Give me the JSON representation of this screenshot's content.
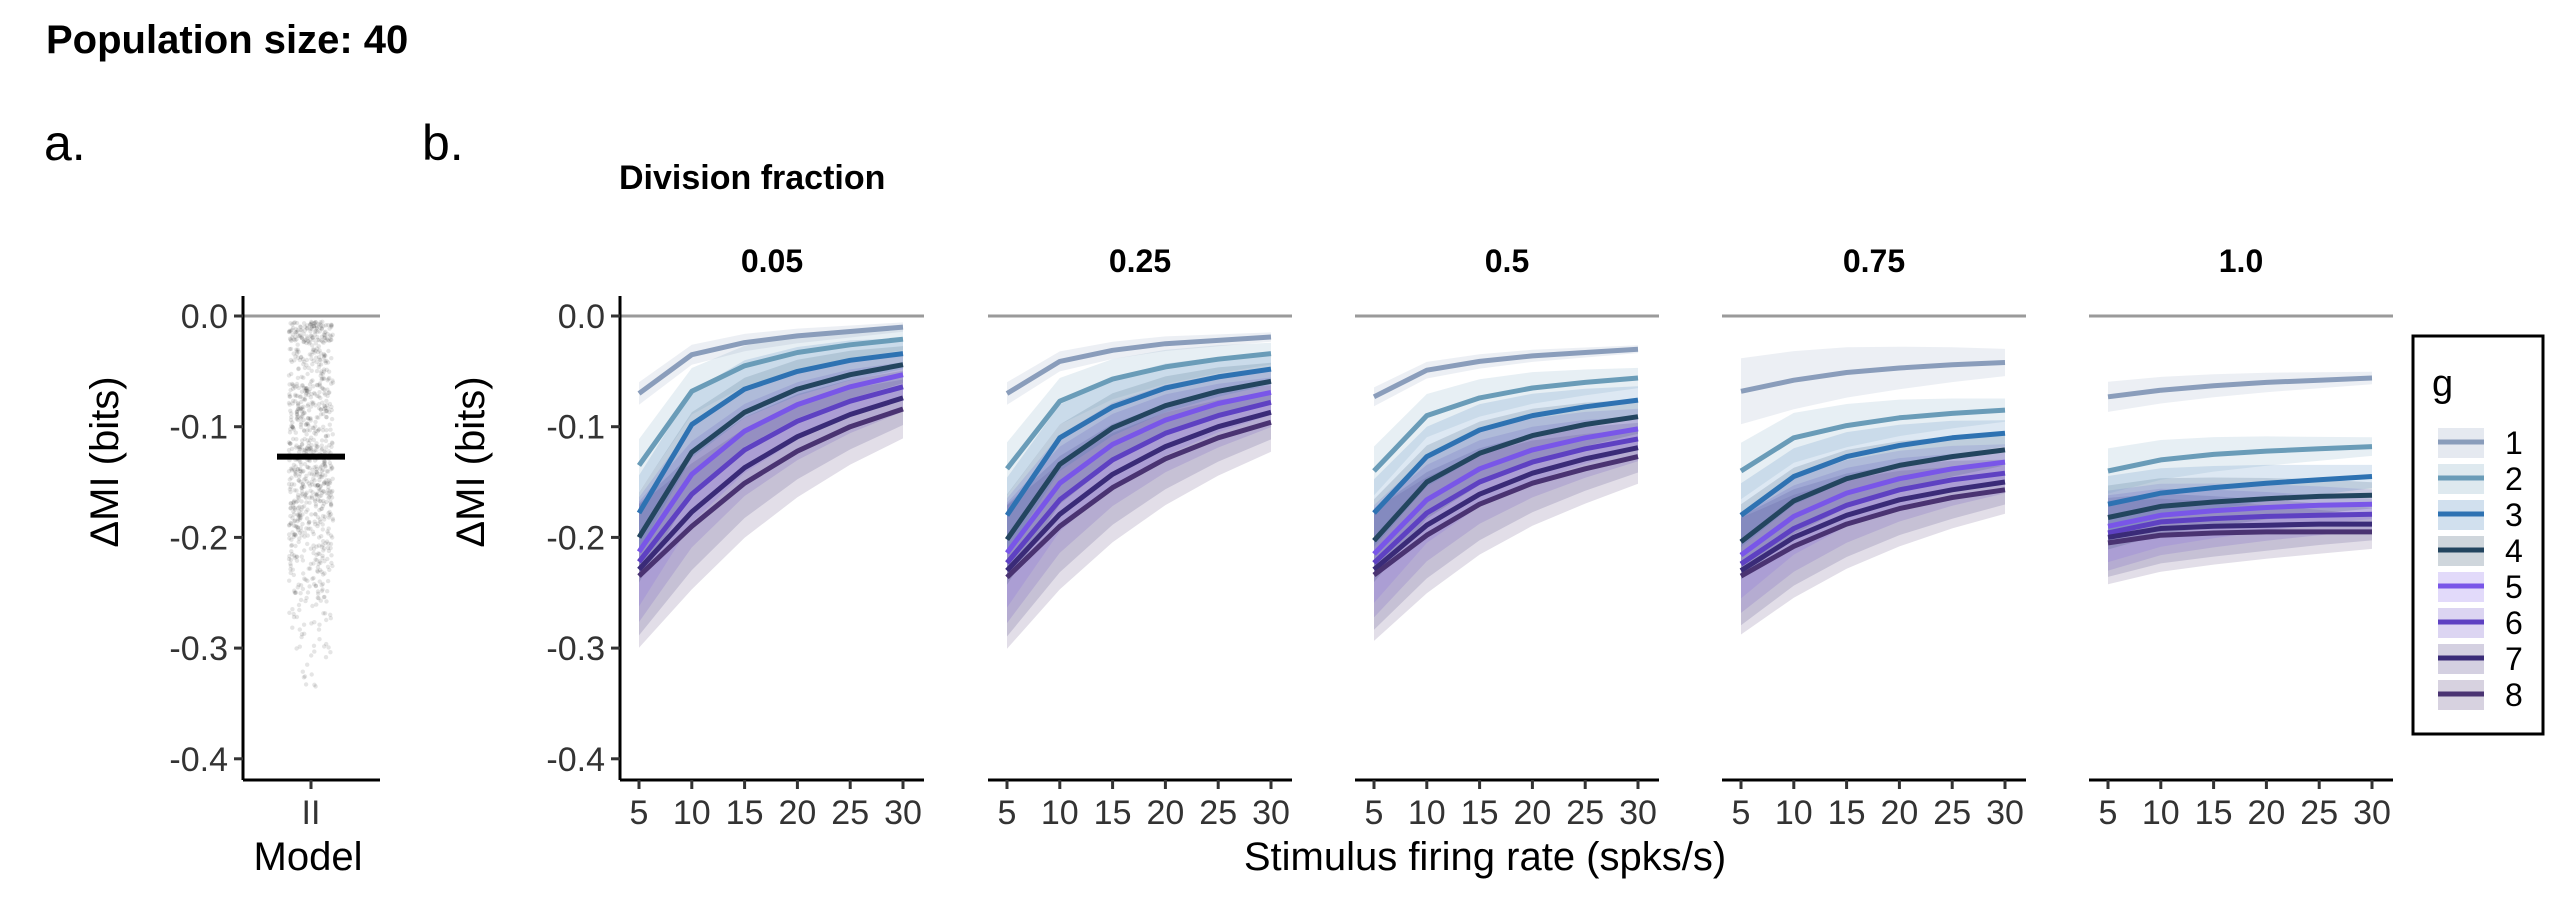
{
  "figure_title": "Population size: 40",
  "panel_labels": [
    "a.",
    "b."
  ],
  "palette": [
    "#8A9DBB",
    "#6A9CB8",
    "#2E72B2",
    "#23455F",
    "#7956E8",
    "#5E41C2",
    "#3A2B78",
    "#4A3372"
  ],
  "chart_data": [
    {
      "type": "scatter",
      "panel": "a.",
      "xlabel": "Model",
      "ylabel": "ΔMI (bits)",
      "categories": [
        "II"
      ],
      "mean": -0.127,
      "points_range": [
        -0.38,
        -0.005
      ],
      "ylim": [
        -0.42,
        0.02
      ],
      "yticks": [
        0.0,
        -0.1,
        -0.2,
        -0.3,
        -0.4
      ],
      "ytick_labels": [
        "0.0",
        "-0.1",
        "-0.2",
        "-0.3",
        "-0.4"
      ],
      "reference_line": 0.0,
      "grid": false
    },
    {
      "type": "line",
      "panel": "b.",
      "facet_title": "Division fraction",
      "xlabel": "Stimulus firing rate (spks/s)",
      "ylabel": "ΔMI (bits)",
      "x": [
        5,
        10,
        15,
        20,
        25,
        30
      ],
      "xticks": [
        5,
        10,
        15,
        20,
        25,
        30
      ],
      "ylim": [
        -0.42,
        0.02
      ],
      "yticks": [
        0.0,
        -0.1,
        -0.2,
        -0.3,
        -0.4
      ],
      "ytick_labels": [
        "0.0",
        "-0.1",
        "-0.2",
        "-0.3",
        "-0.4"
      ],
      "reference_line": 0.0,
      "grid": false,
      "legend": {
        "title": "g",
        "position": "right",
        "labels": [
          "1",
          "2",
          "3",
          "4",
          "5",
          "6",
          "7",
          "8"
        ]
      },
      "facets": [
        {
          "label": "0.05",
          "ribbon": [
            0.012,
            0.028,
            0.04,
            0.048,
            0.058,
            0.064,
            0.07,
            0.076
          ],
          "series": [
            {
              "name": "1",
              "values": [
                -0.07,
                -0.035,
                -0.024,
                -0.018,
                -0.014,
                -0.01
              ]
            },
            {
              "name": "2",
              "values": [
                -0.135,
                -0.068,
                -0.045,
                -0.033,
                -0.026,
                -0.021
              ]
            },
            {
              "name": "3",
              "values": [
                -0.178,
                -0.098,
                -0.066,
                -0.05,
                -0.04,
                -0.034
              ]
            },
            {
              "name": "4",
              "values": [
                -0.2,
                -0.123,
                -0.087,
                -0.066,
                -0.053,
                -0.044
              ]
            },
            {
              "name": "5",
              "values": [
                -0.213,
                -0.143,
                -0.104,
                -0.08,
                -0.064,
                -0.053
              ]
            },
            {
              "name": "6",
              "values": [
                -0.222,
                -0.161,
                -0.121,
                -0.095,
                -0.077,
                -0.064
              ]
            },
            {
              "name": "7",
              "values": [
                -0.229,
                -0.177,
                -0.137,
                -0.109,
                -0.089,
                -0.074
              ]
            },
            {
              "name": "8",
              "values": [
                -0.235,
                -0.19,
                -0.151,
                -0.122,
                -0.1,
                -0.084
              ]
            }
          ]
        },
        {
          "label": "0.25",
          "ribbon": [
            0.012,
            0.028,
            0.04,
            0.048,
            0.058,
            0.064,
            0.07,
            0.076
          ],
          "series": [
            {
              "name": "1",
              "values": [
                -0.07,
                -0.041,
                -0.031,
                -0.025,
                -0.022,
                -0.019
              ]
            },
            {
              "name": "2",
              "values": [
                -0.138,
                -0.077,
                -0.057,
                -0.046,
                -0.039,
                -0.034
              ]
            },
            {
              "name": "3",
              "values": [
                -0.18,
                -0.11,
                -0.082,
                -0.065,
                -0.055,
                -0.048
              ]
            },
            {
              "name": "4",
              "values": [
                -0.202,
                -0.134,
                -0.101,
                -0.081,
                -0.068,
                -0.059
              ]
            },
            {
              "name": "5",
              "values": [
                -0.214,
                -0.151,
                -0.116,
                -0.094,
                -0.079,
                -0.069
              ]
            },
            {
              "name": "6",
              "values": [
                -0.223,
                -0.166,
                -0.13,
                -0.106,
                -0.09,
                -0.078
              ]
            },
            {
              "name": "7",
              "values": [
                -0.23,
                -0.179,
                -0.143,
                -0.118,
                -0.1,
                -0.087
              ]
            },
            {
              "name": "8",
              "values": [
                -0.236,
                -0.19,
                -0.155,
                -0.129,
                -0.11,
                -0.096
              ]
            }
          ]
        },
        {
          "label": "0.5",
          "ribbon": [
            0.01,
            0.026,
            0.036,
            0.044,
            0.052,
            0.058,
            0.064,
            0.07
          ],
          "series": [
            {
              "name": "1",
              "values": [
                -0.073,
                -0.049,
                -0.041,
                -0.036,
                -0.033,
                -0.03
              ]
            },
            {
              "name": "2",
              "values": [
                -0.14,
                -0.09,
                -0.074,
                -0.065,
                -0.06,
                -0.056
              ]
            },
            {
              "name": "3",
              "values": [
                -0.178,
                -0.127,
                -0.103,
                -0.09,
                -0.082,
                -0.076
              ]
            },
            {
              "name": "4",
              "values": [
                -0.203,
                -0.15,
                -0.124,
                -0.108,
                -0.098,
                -0.091
              ]
            },
            {
              "name": "5",
              "values": [
                -0.215,
                -0.166,
                -0.138,
                -0.121,
                -0.11,
                -0.102
              ]
            },
            {
              "name": "6",
              "values": [
                -0.223,
                -0.178,
                -0.15,
                -0.132,
                -0.12,
                -0.111
              ]
            },
            {
              "name": "7",
              "values": [
                -0.229,
                -0.189,
                -0.161,
                -0.142,
                -0.129,
                -0.119
              ]
            },
            {
              "name": "8",
              "values": [
                -0.234,
                -0.198,
                -0.17,
                -0.151,
                -0.138,
                -0.127
              ]
            }
          ]
        },
        {
          "label": "0.75",
          "ribbon": [
            0.035,
            0.03,
            0.034,
            0.04,
            0.046,
            0.052,
            0.058,
            0.062
          ],
          "series": [
            {
              "name": "1",
              "values": [
                -0.068,
                -0.058,
                -0.051,
                -0.047,
                -0.044,
                -0.042
              ]
            },
            {
              "name": "2",
              "values": [
                -0.14,
                -0.11,
                -0.099,
                -0.092,
                -0.088,
                -0.085
              ]
            },
            {
              "name": "3",
              "values": [
                -0.18,
                -0.145,
                -0.127,
                -0.117,
                -0.11,
                -0.106
              ]
            },
            {
              "name": "4",
              "values": [
                -0.204,
                -0.167,
                -0.147,
                -0.135,
                -0.127,
                -0.121
              ]
            },
            {
              "name": "5",
              "values": [
                -0.216,
                -0.181,
                -0.16,
                -0.147,
                -0.138,
                -0.132
              ]
            },
            {
              "name": "6",
              "values": [
                -0.224,
                -0.192,
                -0.171,
                -0.157,
                -0.148,
                -0.142
              ]
            },
            {
              "name": "7",
              "values": [
                -0.23,
                -0.2,
                -0.18,
                -0.166,
                -0.157,
                -0.15
              ]
            },
            {
              "name": "8",
              "values": [
                -0.235,
                -0.208,
                -0.188,
                -0.174,
                -0.164,
                -0.157
              ]
            }
          ]
        },
        {
          "label": "1.0",
          "ribbon": [
            0.016,
            0.024,
            0.03,
            0.034,
            0.038,
            0.04,
            0.042,
            0.044
          ],
          "series": [
            {
              "name": "1",
              "values": [
                -0.073,
                -0.067,
                -0.063,
                -0.06,
                -0.058,
                -0.056
              ]
            },
            {
              "name": "2",
              "values": [
                -0.14,
                -0.13,
                -0.125,
                -0.122,
                -0.12,
                -0.118
              ]
            },
            {
              "name": "3",
              "values": [
                -0.17,
                -0.16,
                -0.155,
                -0.151,
                -0.148,
                -0.145
              ]
            },
            {
              "name": "4",
              "values": [
                -0.182,
                -0.172,
                -0.168,
                -0.165,
                -0.163,
                -0.162
              ]
            },
            {
              "name": "5",
              "values": [
                -0.19,
                -0.18,
                -0.176,
                -0.173,
                -0.171,
                -0.17
              ]
            },
            {
              "name": "6",
              "values": [
                -0.196,
                -0.186,
                -0.183,
                -0.181,
                -0.18,
                -0.179
              ]
            },
            {
              "name": "7",
              "values": [
                -0.2,
                -0.192,
                -0.19,
                -0.189,
                -0.188,
                -0.188
              ]
            },
            {
              "name": "8",
              "values": [
                -0.205,
                -0.198,
                -0.196,
                -0.195,
                -0.195,
                -0.195
              ]
            }
          ]
        }
      ]
    }
  ]
}
